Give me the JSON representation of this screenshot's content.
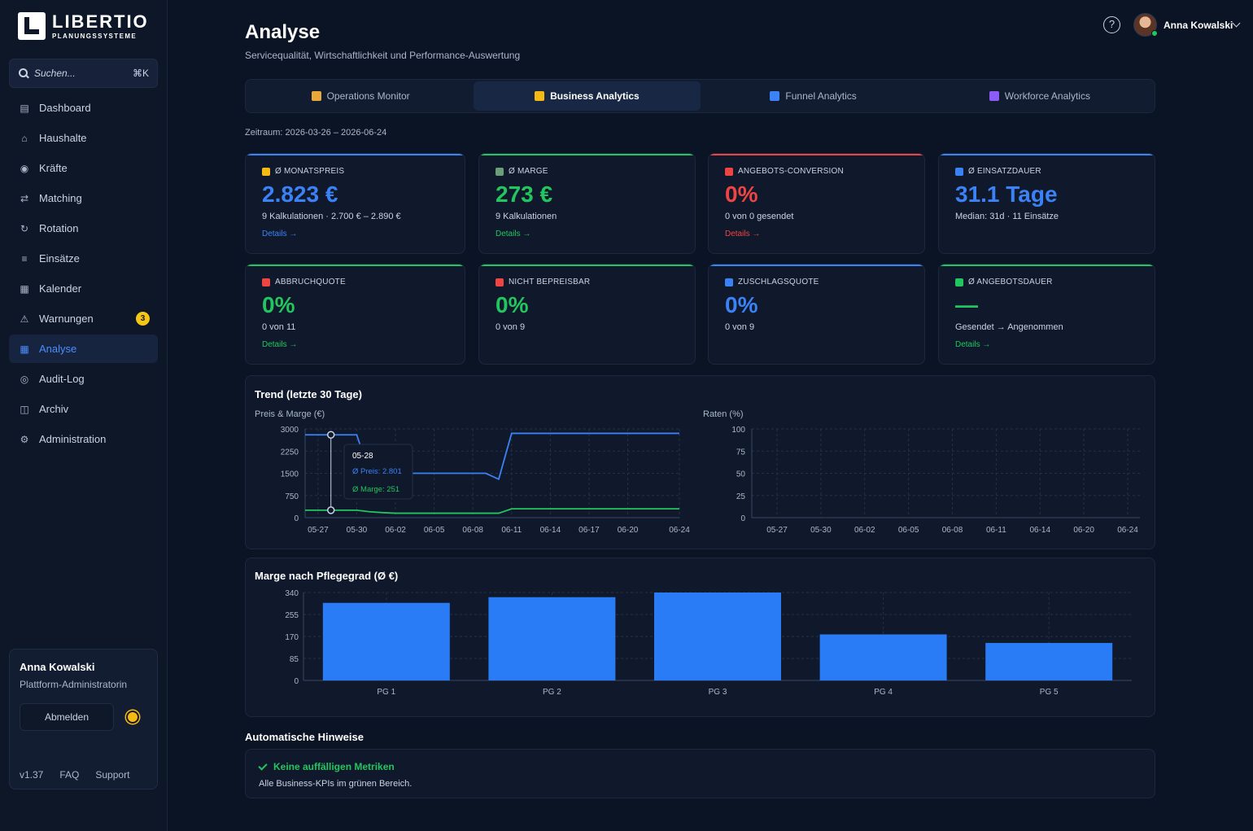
{
  "logo": {
    "name": "LIBERTIO",
    "sub": "PLANUNGSSYSTEME"
  },
  "search": {
    "placeholder": "Suchen...",
    "shortcut": "⌘K"
  },
  "nav": [
    {
      "label": "Dashboard",
      "icon": "dashboard-icon"
    },
    {
      "label": "Haushalte",
      "icon": "home-icon"
    },
    {
      "label": "Kräfte",
      "icon": "user-circle-icon"
    },
    {
      "label": "Matching",
      "icon": "arrows-swap-icon"
    },
    {
      "label": "Rotation",
      "icon": "rotate-icon"
    },
    {
      "label": "Einsätze",
      "icon": "list-icon"
    },
    {
      "label": "Kalender",
      "icon": "calendar-icon"
    },
    {
      "label": "Warnungen",
      "icon": "warning-icon",
      "badge": "3"
    },
    {
      "label": "Analyse",
      "icon": "grid-icon",
      "active": true
    },
    {
      "label": "Audit-Log",
      "icon": "audit-icon"
    },
    {
      "label": "Archiv",
      "icon": "archive-icon"
    },
    {
      "label": "Administration",
      "icon": "gear-icon"
    }
  ],
  "user_card": {
    "name": "Anna Kowalski",
    "role": "Plattform-Administratorin",
    "logout": "Abmelden",
    "version": "v1.37",
    "faq": "FAQ",
    "support": "Support"
  },
  "header": {
    "title": "Analyse",
    "subtitle": "Servicequalität, Wirtschaftlichkeit und Performance-Auswertung",
    "user_name": "Anna Kowalski",
    "help": "?"
  },
  "tabs": [
    {
      "label": "Operations Monitor",
      "icon_color": "#e8a93b"
    },
    {
      "label": "Business Analytics",
      "icon_color": "#f5b914",
      "active": true
    },
    {
      "label": "Funnel Analytics",
      "icon_color": "#3b82f6"
    },
    {
      "label": "Workforce Analytics",
      "icon_color": "#8b5cf6"
    }
  ],
  "zeitraum": "Zeitraum: 2026-03-26 – 2026-06-24",
  "kpis": [
    {
      "label": "Ø MONATSPREIS",
      "value": "2.823 €",
      "sub": "9 Kalkulationen · 2.700 € – 2.890 €",
      "link": "Details →",
      "accent": "#3b82f6",
      "value_color": "#3b82f6",
      "link_color": "#3b82f6",
      "icon_color": "#f5b914"
    },
    {
      "label": "Ø MARGE",
      "value": "273 €",
      "sub": "9 Kalkulationen",
      "link": "Details →",
      "accent": "#22c55e",
      "value_color": "#22c55e",
      "link_color": "#22c55e",
      "icon_color": "#6b9d7a"
    },
    {
      "label": "ANGEBOTS-CONVERSION",
      "value": "0%",
      "sub": "0 von 0 gesendet",
      "link": "Details →",
      "accent": "#ef4444",
      "value_color": "#ef4444",
      "link_color": "#ef4444",
      "icon_color": "#ef4444"
    },
    {
      "label": "Ø EINSATZDAUER",
      "value": "31.1 Tage",
      "sub": "Median: 31d · 11 Einsätze",
      "link": "",
      "accent": "#3b82f6",
      "value_color": "#3b82f6",
      "link_color": "#3b82f6",
      "icon_color": "#3b82f6"
    },
    {
      "label": "ABBRUCHQUOTE",
      "value": "0%",
      "sub": "0 von 11",
      "link": "Details →",
      "accent": "#22c55e",
      "value_color": "#22c55e",
      "link_color": "#22c55e",
      "icon_color": "#ef4444"
    },
    {
      "label": "NICHT BEPREISBAR",
      "value": "0%",
      "sub": "0 von 9",
      "link": "",
      "accent": "#22c55e",
      "value_color": "#22c55e",
      "link_color": "#22c55e",
      "icon_color": "#ef4444"
    },
    {
      "label": "ZUSCHLAGSQUOTE",
      "value": "0%",
      "sub": "0 von 9",
      "link": "",
      "accent": "#3b82f6",
      "value_color": "#3b82f6",
      "link_color": "#3b82f6",
      "icon_color": "#3b82f6"
    },
    {
      "label": "Ø ANGEBOTSDAUER",
      "value": "—",
      "sub": "Gesendet → Angenommen",
      "link": "Details →",
      "accent": "#22c55e",
      "value_color": "#22c55e",
      "link_color": "#22c55e",
      "icon_color": "#22c55e"
    }
  ],
  "trend": {
    "title": "Trend (letzte 30 Tage)",
    "left_label": "Preis & Marge (€)",
    "right_label": "Raten (%)",
    "tooltip": {
      "date": "05-28",
      "preis": "Ø Preis: 2.801",
      "marge": "Ø Marge: 251"
    }
  },
  "bars": {
    "title": "Marge nach Pflegegrad (Ø €)"
  },
  "hints": {
    "section_title": "Automatische Hinweise",
    "title": "Keine auffälligen Metriken",
    "text": "Alle Business-KPIs im grünen Bereich."
  },
  "chart_data": [
    {
      "type": "line",
      "title": "Trend (letzte 30 Tage)",
      "ylabel": "Preis & Marge (€)",
      "ylim": [
        0,
        3000
      ],
      "yticks": [
        0,
        750,
        1500,
        2250,
        3000
      ],
      "x_ticks": [
        "05-27",
        "05-30",
        "06-02",
        "06-05",
        "06-08",
        "06-11",
        "06-14",
        "06-17",
        "06-20",
        "06-24"
      ],
      "x": [
        "05-26",
        "05-27",
        "05-28",
        "05-29",
        "05-30",
        "05-31",
        "06-01",
        "06-02",
        "06-03",
        "06-04",
        "06-05",
        "06-06",
        "06-07",
        "06-08",
        "06-09",
        "06-10",
        "06-11",
        "06-12",
        "06-13",
        "06-14",
        "06-15",
        "06-16",
        "06-17",
        "06-18",
        "06-19",
        "06-20",
        "06-21",
        "06-22",
        "06-23",
        "06-24"
      ],
      "series": [
        {
          "name": "Ø Preis",
          "color": "#3b82f6",
          "values": [
            2801,
            2801,
            2801,
            2801,
            2801,
            1500,
            1500,
            1500,
            1500,
            1500,
            1500,
            1500,
            1500,
            1500,
            1500,
            1300,
            2850,
            2850,
            2850,
            2850,
            2850,
            2850,
            2850,
            2850,
            2850,
            2850,
            2850,
            2850,
            2850,
            2850
          ]
        },
        {
          "name": "Ø Marge",
          "color": "#22c55e",
          "values": [
            251,
            251,
            251,
            251,
            251,
            200,
            170,
            150,
            150,
            150,
            150,
            150,
            150,
            150,
            150,
            150,
            300,
            300,
            300,
            300,
            300,
            300,
            300,
            300,
            300,
            300,
            300,
            300,
            300,
            300
          ]
        }
      ],
      "grid": true
    },
    {
      "type": "line",
      "ylabel": "Raten (%)",
      "ylim": [
        0,
        100
      ],
      "yticks": [
        0,
        25,
        50,
        75,
        100
      ],
      "x_ticks": [
        "05-27",
        "05-30",
        "06-02",
        "06-05",
        "06-08",
        "06-11",
        "06-14",
        "06-20",
        "06-24"
      ],
      "series": [],
      "grid": true
    },
    {
      "type": "bar",
      "title": "Marge nach Pflegegrad (Ø €)",
      "categories": [
        "PG 1",
        "PG 2",
        "PG 3",
        "PG 4",
        "PG 5"
      ],
      "values": [
        300,
        322,
        340,
        178,
        145
      ],
      "ylim": [
        0,
        340
      ],
      "yticks": [
        0,
        85,
        170,
        255,
        340
      ],
      "color": "#2a7cf6",
      "grid": true
    }
  ]
}
